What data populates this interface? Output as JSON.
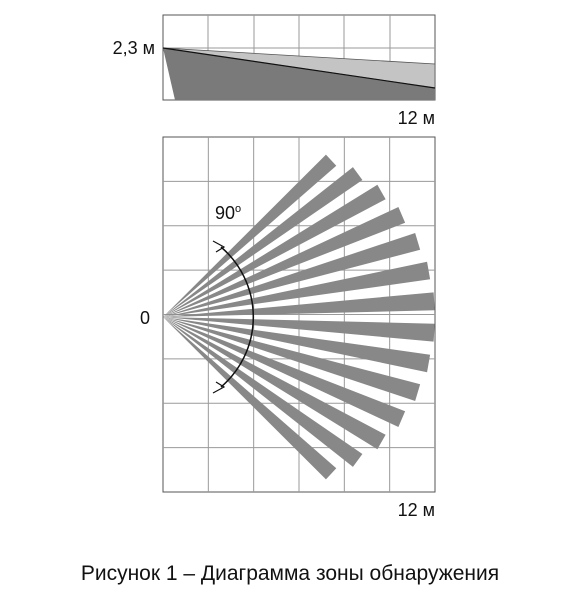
{
  "side_view": {
    "height_label": "2,3 м",
    "range_label": "12 м"
  },
  "top_view": {
    "angle_label": "90",
    "angle_unit": "o",
    "origin_label": "0",
    "range_label": "12 м"
  },
  "caption": "Рисунок 1 – Диаграмма зоны обнаружения"
}
